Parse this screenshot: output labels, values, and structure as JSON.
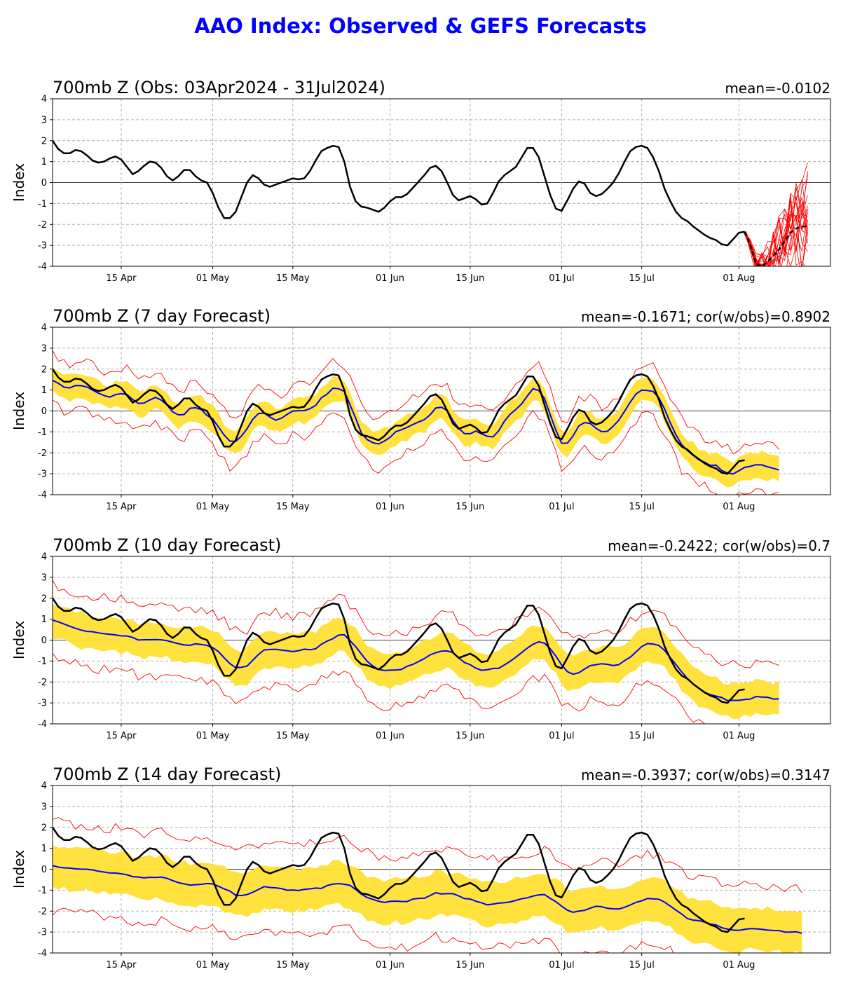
{
  "title": "AAO Index: Observed & GEFS Forecasts",
  "colors": {
    "title": "#0000ff",
    "observed": "#000000",
    "ens_mean": "#0000ff",
    "spread": "#ffe033",
    "members": "#ff0000"
  },
  "chart_data": [
    {
      "type": "line",
      "title": "700mb Z (Obs: 03Apr2024 - 31Jul2024)",
      "stats": "mean=-0.0102",
      "ylabel": "Index",
      "ylim": [
        -4,
        4
      ],
      "yticks": [
        "4",
        "3",
        "2",
        "1",
        "0",
        "-1",
        "-2",
        "-3",
        "-4"
      ],
      "xticks": [
        "15 Apr",
        "01 May",
        "15 May",
        "01 Jun",
        "15 Jun",
        "01 Jul",
        "15 Jul",
        "01 Aug"
      ],
      "grid": true,
      "observed_start": "03Apr2024",
      "observed": [
        2.0,
        1.6,
        1.4,
        1.4,
        1.55,
        1.5,
        1.3,
        1.05,
        0.95,
        1.0,
        1.15,
        1.25,
        1.1,
        0.75,
        0.4,
        0.55,
        0.8,
        1.0,
        0.95,
        0.7,
        0.3,
        0.1,
        0.3,
        0.6,
        0.6,
        0.3,
        0.1,
        0.0,
        -0.5,
        -1.2,
        -1.7,
        -1.7,
        -1.4,
        -0.7,
        0.0,
        0.35,
        0.2,
        -0.1,
        -0.2,
        -0.1,
        0.0,
        0.1,
        0.2,
        0.15,
        0.2,
        0.55,
        1.05,
        1.5,
        1.65,
        1.75,
        1.7,
        1.0,
        -0.2,
        -0.9,
        -1.15,
        -1.2,
        -1.3,
        -1.4,
        -1.2,
        -0.9,
        -0.7,
        -0.7,
        -0.55,
        -0.25,
        0.05,
        0.35,
        0.7,
        0.8,
        0.55,
        0.0,
        -0.6,
        -0.85,
        -0.75,
        -0.65,
        -0.8,
        -1.05,
        -1.0,
        -0.5,
        0.05,
        0.35,
        0.55,
        0.75,
        1.2,
        1.65,
        1.65,
        1.2,
        0.3,
        -0.6,
        -1.25,
        -1.35,
        -0.85,
        -0.3,
        0.05,
        -0.05,
        -0.5,
        -0.65,
        -0.55,
        -0.3,
        0.0,
        0.45,
        1.0,
        1.5,
        1.7,
        1.75,
        1.65,
        1.2,
        0.55,
        -0.3,
        -0.9,
        -1.4,
        -1.7,
        -1.85,
        -2.1,
        -2.3,
        -2.5,
        -2.65,
        -2.75,
        -2.95,
        -3.0,
        -2.7,
        -2.4,
        -2.35
      ],
      "forecast_members": "GEFS members",
      "forecast_mean": [
        -2.35,
        -3.0,
        -3.9,
        -4.0,
        -3.8,
        -3.5,
        -3.2,
        -2.8,
        -2.4,
        -2.2,
        -2.1,
        -2.1
      ]
    },
    {
      "type": "line",
      "title": "700mb Z (7 day Forecast)",
      "stats": "mean=-0.1671; cor(w/obs)=0.8902",
      "ylabel": "Index",
      "ylim": [
        -4,
        4
      ],
      "yticks": [
        "4",
        "3",
        "2",
        "1",
        "0",
        "-1",
        "-2",
        "-3",
        "-4"
      ],
      "xticks": [
        "15 Apr",
        "01 May",
        "15 May",
        "01 Jun",
        "15 Jun",
        "01 Jul",
        "15 Jul",
        "01 Aug"
      ],
      "grid": true,
      "observed_start": "03Apr2024",
      "forecast_days_plotted": 128
    },
    {
      "type": "line",
      "title": "700mb Z (10 day Forecast)",
      "stats": "mean=-0.2422; cor(w/obs)=0.7",
      "ylabel": "Index",
      "ylim": [
        -4,
        4
      ],
      "yticks": [
        "4",
        "3",
        "2",
        "1",
        "0",
        "-1",
        "-2",
        "-3",
        "-4"
      ],
      "xticks": [
        "15 Apr",
        "01 May",
        "15 May",
        "01 Jun",
        "15 Jun",
        "01 Jul",
        "15 Jul",
        "01 Aug"
      ],
      "grid": true,
      "observed_start": "03Apr2024",
      "forecast_days_plotted": 128
    },
    {
      "type": "line",
      "title": "700mb Z (14 day Forecast)",
      "stats": "mean=-0.3937; cor(w/obs)=0.3147",
      "ylabel": "Index",
      "ylim": [
        -4,
        4
      ],
      "yticks": [
        "4",
        "3",
        "2",
        "1",
        "0",
        "-1",
        "-2",
        "-3",
        "-4"
      ],
      "xticks": [
        "15 Apr",
        "01 May",
        "15 May",
        "01 Jun",
        "15 Jun",
        "01 Jul",
        "15 Jul",
        "01 Aug"
      ],
      "grid": true,
      "observed_start": "03Apr2024",
      "forecast_days_plotted": 132
    }
  ]
}
